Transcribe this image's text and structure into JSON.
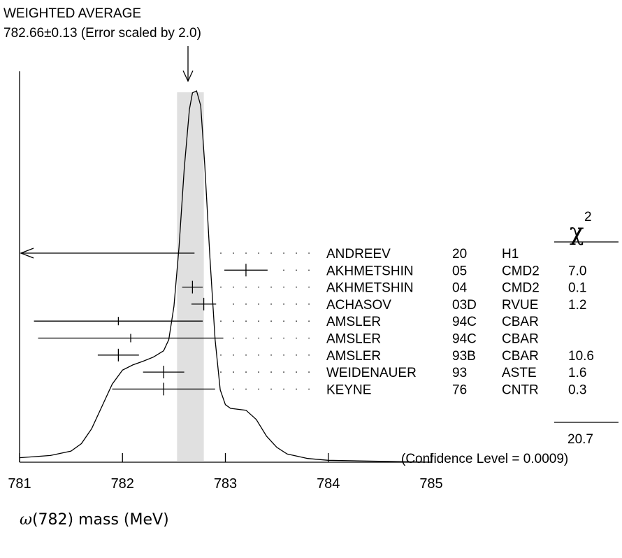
{
  "chart_data": {
    "type": "ideogram",
    "title_line1": "WEIGHTED AVERAGE",
    "title_line2": "782.66±0.13 (Error scaled by 2.0)",
    "weighted_average": 782.66,
    "band_error": 0.13,
    "xlabel_symbol": "ω",
    "xlabel_rest": "(782) mass (MeV)",
    "xlim": [
      781,
      785
    ],
    "x_ticks": [
      {
        "value": 781,
        "label": "781"
      },
      {
        "value": 782,
        "label": "782"
      },
      {
        "value": 783,
        "label": "783"
      },
      {
        "value": 784,
        "label": "784"
      },
      {
        "value": 785,
        "label": "785"
      }
    ],
    "chi2_symbol": "χ",
    "chi2_power": "2",
    "chi2_total": "20.7",
    "confidence_text": "(Confidence Level = 0.0009)",
    "measurements": [
      {
        "author": "ANDREEV",
        "year": "20",
        "tech": "H1",
        "chi2": "",
        "value": 780.5,
        "error": 2.2,
        "arrow_left": true
      },
      {
        "author": "AKHMETSHIN",
        "year": "05",
        "tech": "CMD2",
        "chi2": "7.0",
        "value": 783.2,
        "error": 0.21
      },
      {
        "author": "AKHMETSHIN",
        "year": "04",
        "tech": "CMD2",
        "chi2": "0.1",
        "value": 782.68,
        "error": 0.1
      },
      {
        "author": "ACHASOV",
        "year": "03D",
        "tech": "RVUE",
        "chi2": "1.2",
        "value": 782.79,
        "error": 0.12
      },
      {
        "author": "AMSLER",
        "year": "94C",
        "tech": "CBAR",
        "chi2": "",
        "value": 781.96,
        "error": 0.82
      },
      {
        "author": "AMSLER",
        "year": "94C",
        "tech": "CBAR",
        "chi2": "",
        "value": 782.08,
        "error": 0.9
      },
      {
        "author": "AMSLER",
        "year": "93B",
        "tech": "CBAR",
        "chi2": "10.6",
        "value": 781.96,
        "error": 0.2
      },
      {
        "author": "WEIDENAUER",
        "year": "93",
        "tech": "ASTE",
        "chi2": "1.6",
        "value": 782.4,
        "error": 0.2
      },
      {
        "author": "KEYNE",
        "year": "76",
        "tech": "CNTR",
        "chi2": "0.3",
        "value": 782.4,
        "error": 0.5
      }
    ],
    "curve": [
      [
        781.0,
        0.012
      ],
      [
        781.3,
        0.018
      ],
      [
        781.5,
        0.03
      ],
      [
        781.6,
        0.05
      ],
      [
        781.7,
        0.09
      ],
      [
        781.8,
        0.15
      ],
      [
        781.9,
        0.21
      ],
      [
        782.0,
        0.248
      ],
      [
        782.1,
        0.262
      ],
      [
        782.2,
        0.272
      ],
      [
        782.3,
        0.283
      ],
      [
        782.4,
        0.3
      ],
      [
        782.45,
        0.33
      ],
      [
        782.5,
        0.42
      ],
      [
        782.55,
        0.58
      ],
      [
        782.6,
        0.79
      ],
      [
        782.65,
        0.95
      ],
      [
        782.68,
        0.995
      ],
      [
        782.72,
        1.0
      ],
      [
        782.76,
        0.96
      ],
      [
        782.8,
        0.8
      ],
      [
        782.85,
        0.55
      ],
      [
        782.9,
        0.33
      ],
      [
        782.95,
        0.195
      ],
      [
        783.0,
        0.155
      ],
      [
        783.05,
        0.145
      ],
      [
        783.2,
        0.14
      ],
      [
        783.3,
        0.115
      ],
      [
        783.4,
        0.07
      ],
      [
        783.5,
        0.04
      ],
      [
        783.6,
        0.022
      ],
      [
        783.8,
        0.01
      ],
      [
        784.0,
        0.005
      ],
      [
        785.0,
        0.0
      ]
    ]
  }
}
